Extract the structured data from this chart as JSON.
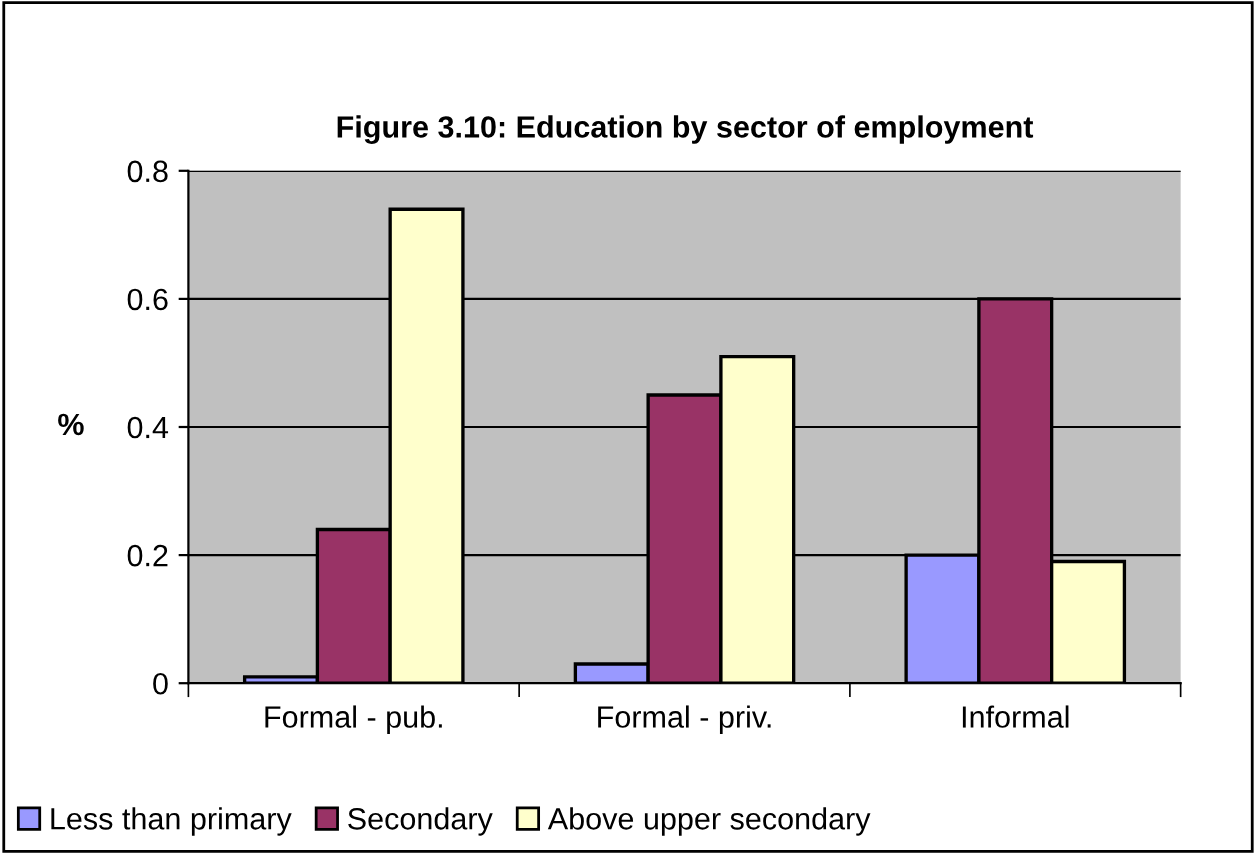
{
  "chart_data": {
    "type": "bar",
    "title": "Figure 3.10: Education by sector of employment",
    "ylabel": "%",
    "categories": [
      "Formal - pub.",
      "Formal - priv.",
      "Informal"
    ],
    "series": [
      {
        "name": "Less than primary",
        "color": "#9999ff",
        "values": [
          0.01,
          0.03,
          0.2
        ]
      },
      {
        "name": "Secondary",
        "color": "#993366",
        "values": [
          0.24,
          0.45,
          0.6
        ]
      },
      {
        "name": "Above upper secondary",
        "color": "#ffffcc",
        "values": [
          0.74,
          0.51,
          0.19
        ]
      }
    ],
    "ylim": [
      0,
      0.8
    ],
    "yticks": [
      0,
      0.2,
      0.4,
      0.6,
      0.8
    ],
    "grid": "y",
    "legend": "bottom"
  }
}
